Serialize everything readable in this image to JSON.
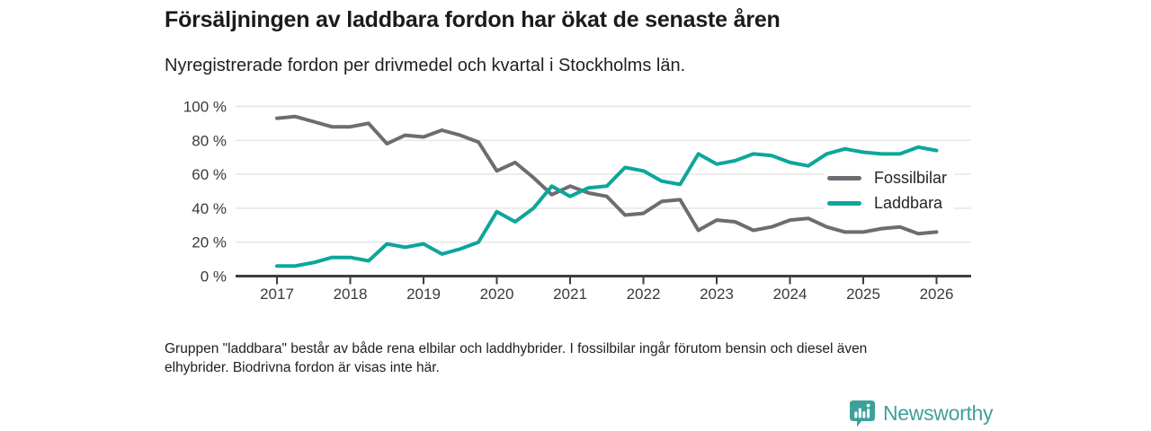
{
  "chart_data": {
    "type": "line",
    "title": "Försäljningen av laddbara fordon har ökat de senaste åren",
    "subtitle": "Nyregistrerade fordon per drivmedel och kvartal i Stockholms län.",
    "x_unit": "quarter",
    "x_start_label": "2017 Q1",
    "x_end_label": "2026 Q1",
    "x_tick_years": [
      2017,
      2018,
      2019,
      2020,
      2021,
      2022,
      2023,
      2024,
      2025,
      2026
    ],
    "y_ticks": [
      0,
      20,
      40,
      60,
      80,
      100
    ],
    "y_tick_suffix": " %",
    "ylim": [
      0,
      100
    ],
    "grid": true,
    "legend_position": "inside-right",
    "grid_color": "#e4e4e4",
    "axis_color": "#3d3d42",
    "series": [
      {
        "name": "Fossilbilar",
        "color": "#6e6c73",
        "values": [
          93,
          94,
          91,
          88,
          88,
          90,
          78,
          83,
          82,
          86,
          83,
          79,
          62,
          67,
          58,
          48,
          53,
          49,
          47,
          36,
          37,
          44,
          45,
          27,
          33,
          32,
          27,
          29,
          33,
          34,
          29,
          26,
          26,
          28,
          29,
          25,
          26
        ]
      },
      {
        "name": "Laddbara",
        "color": "#0da69b",
        "values": [
          6,
          6,
          8,
          11,
          11,
          9,
          19,
          17,
          19,
          13,
          16,
          20,
          38,
          32,
          40,
          53,
          47,
          52,
          53,
          64,
          62,
          56,
          54,
          72,
          66,
          68,
          72,
          71,
          67,
          65,
          72,
          75,
          73,
          72,
          72,
          76,
          74
        ]
      }
    ]
  },
  "footnote": {
    "line1": "Gruppen \"laddbara\" består av både rena elbilar och laddhybrider. I fossilbilar ingår förutom bensin och diesel även",
    "line2": "elhybrider. Biodrivna fordon är visas inte här."
  },
  "branding": {
    "logo_text": "Newsworthy",
    "logo_color": "#3fa09b",
    "logo_icon": "bar-chart-speech-bubble-icon"
  }
}
